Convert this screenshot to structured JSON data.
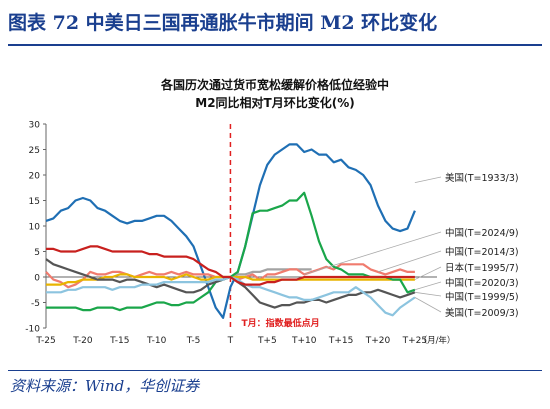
{
  "figure_title": "图表 72   中美日三国再通胀牛市期间 M2 环比变化",
  "source": "资料来源：Wind，华创证券",
  "chart_data": {
    "type": "line",
    "title_line1": "各国历次通过货币宽松缓解价格低位经验中",
    "title_line2": "M2同比相对T月环比变化(%)",
    "x_unit": "（月/年）",
    "x_ticks": [
      "T-25",
      "T-20",
      "T-15",
      "T-10",
      "T-5",
      "T",
      "T+5",
      "T+10",
      "T+15",
      "T+20",
      "T+25"
    ],
    "xlim": [
      -25,
      28
    ],
    "ylim": [
      -10,
      30
    ],
    "y_ticks": [
      -10,
      -5,
      0,
      5,
      10,
      15,
      20,
      25,
      30
    ],
    "annotation": "T月：指数最低点月",
    "series": [
      {
        "name": "美国(T=1933/3)",
        "color": "#1f6fb4",
        "x": [
          -25,
          -24,
          -23,
          -22,
          -21,
          -20,
          -19,
          -18,
          -17,
          -16,
          -15,
          -14,
          -13,
          -12,
          -11,
          -10,
          -9,
          -8,
          -7,
          -6,
          -5,
          -4,
          -3,
          -2,
          -1,
          0,
          1,
          2,
          3,
          4,
          5,
          6,
          7,
          8,
          9,
          10,
          11,
          12,
          13,
          14,
          15,
          16,
          17,
          18,
          19,
          20,
          21,
          22,
          23,
          24,
          25
        ],
        "y": [
          11,
          11.5,
          13,
          13.5,
          15,
          15.5,
          15,
          13.5,
          13,
          12,
          11,
          10.5,
          11,
          11,
          11.5,
          12,
          12,
          11,
          9.5,
          8,
          6,
          2,
          -2,
          -6,
          -8,
          -2,
          1,
          6,
          12,
          18,
          22,
          24,
          25,
          26,
          26,
          24.5,
          25,
          24,
          24,
          22.5,
          23,
          21.5,
          21,
          20,
          18,
          14,
          11,
          9.5,
          9,
          9.5,
          13
        ]
      },
      {
        "name": "中国(T=2024/9)",
        "color": "#a3a3a3",
        "x": [
          -1,
          0,
          1,
          2,
          3,
          4,
          5,
          6,
          7,
          8,
          9,
          10,
          11
        ],
        "y": [
          -0.5,
          0,
          0.5,
          0.5,
          1,
          1,
          1.5,
          1.5,
          1.5,
          1.5,
          1.5,
          1.5,
          1.5
        ]
      },
      {
        "name": "中国(T=2014/3)",
        "color": "#f07b6e",
        "x": [
          -25,
          -24,
          -23,
          -22,
          -21,
          -20,
          -19,
          -18,
          -17,
          -16,
          -15,
          -14,
          -13,
          -12,
          -11,
          -10,
          -9,
          -8,
          -7,
          -6,
          -5,
          -4,
          -3,
          -2,
          -1,
          0,
          1,
          2,
          3,
          4,
          5,
          6,
          7,
          8,
          9,
          10,
          11,
          12,
          13,
          14,
          15,
          16,
          17,
          18,
          19,
          20,
          21,
          22,
          23,
          24,
          25
        ],
        "y": [
          1,
          -0.5,
          -1,
          -2,
          -1.5,
          -0.5,
          1,
          0.5,
          0.5,
          1,
          1,
          0.5,
          0,
          0.5,
          1,
          0.5,
          0.5,
          1,
          0.5,
          1,
          0.5,
          0.5,
          0.5,
          0,
          0,
          0,
          -0.5,
          0,
          0.5,
          -0.5,
          0.5,
          0.5,
          1,
          1.5,
          1.5,
          0.5,
          1,
          1.5,
          2,
          1.5,
          2.5,
          2.5,
          2.5,
          2.5,
          1.5,
          1,
          0.5,
          1,
          1.5,
          1,
          1
        ]
      },
      {
        "name": "日本(T=1995/7)",
        "color": "#e8b400",
        "x": [
          -25,
          -24,
          -23,
          -22,
          -21,
          -20,
          -19,
          -18,
          -17,
          -16,
          -15,
          -14,
          -13,
          -12,
          -11,
          -10,
          -9,
          -8,
          -7,
          -6,
          -5,
          -4,
          -3,
          -2,
          -1,
          0,
          1,
          2,
          3,
          4,
          5,
          6,
          7,
          8,
          9,
          10,
          11,
          12,
          13,
          14,
          15,
          16,
          17,
          18,
          19,
          20,
          21,
          22,
          23,
          24,
          25
        ],
        "y": [
          -1.5,
          -1.5,
          -1.5,
          -1,
          -1,
          -0.5,
          -0.5,
          -0.5,
          0,
          0,
          0.5,
          0.5,
          0,
          0,
          0,
          0,
          0,
          -0.5,
          0,
          0.5,
          0,
          -0.5,
          -0.5,
          0,
          0,
          0,
          0,
          0,
          -0.5,
          -0.5,
          -0.5,
          -0.5,
          -0.5,
          -0.5,
          -0.5,
          -0.5,
          -0.5,
          -0.5,
          -0.5,
          -0.5,
          -0.5,
          -0.5,
          -0.5,
          -0.5,
          -0.5,
          -0.5,
          -0.5,
          -0.5,
          -0.5,
          -0.5,
          -0.5
        ]
      },
      {
        "name": "中国(T=2020/3)",
        "color": "#1aa64a",
        "x": [
          -25,
          -24,
          -23,
          -22,
          -21,
          -20,
          -19,
          -18,
          -17,
          -16,
          -15,
          -14,
          -13,
          -12,
          -11,
          -10,
          -9,
          -8,
          -7,
          -6,
          -5,
          -4,
          -3,
          -2,
          -1,
          0,
          1,
          2,
          3,
          4,
          5,
          6,
          7,
          8,
          9,
          10,
          11,
          12,
          13,
          14,
          15,
          16,
          17,
          18,
          19,
          20,
          21,
          22,
          23,
          24,
          25
        ],
        "y": [
          -6,
          -6,
          -6,
          -6,
          -6,
          -6.5,
          -6.5,
          -6,
          -6,
          -6,
          -6.5,
          -6,
          -6,
          -6,
          -5.5,
          -5,
          -5,
          -5.5,
          -5.5,
          -5,
          -5,
          -4,
          -3,
          -1,
          -0.5,
          0,
          1,
          6,
          12.5,
          13,
          13,
          13.5,
          14,
          15,
          15,
          16.5,
          12,
          7,
          3.5,
          2,
          1.5,
          0.5,
          0.5,
          0.5,
          0,
          0,
          0,
          -0.5,
          -0.5,
          -3,
          -2.5
        ]
      },
      {
        "name": "中国(T=1999/5)",
        "color": "#555555",
        "x": [
          -25,
          -24,
          -23,
          -22,
          -21,
          -20,
          -19,
          -18,
          -17,
          -16,
          -15,
          -14,
          -13,
          -12,
          -11,
          -10,
          -9,
          -8,
          -7,
          -6,
          -5,
          -4,
          -3,
          -2,
          -1,
          0,
          1,
          2,
          3,
          4,
          5,
          6,
          7,
          8,
          9,
          10,
          11,
          12,
          13,
          14,
          15,
          16,
          17,
          18,
          19,
          20,
          21,
          22,
          23,
          24,
          25
        ],
        "y": [
          3.5,
          2.5,
          2,
          1.5,
          1,
          0.5,
          0,
          -0.5,
          -0.5,
          -0.5,
          -1,
          -0.5,
          -0.5,
          -1,
          -1.5,
          -2,
          -1.5,
          -2,
          -2.5,
          -3,
          -3,
          -2.5,
          -1.5,
          -1,
          -0.5,
          0,
          -1,
          -2,
          -3.5,
          -5,
          -5.5,
          -6,
          -5.5,
          -5.5,
          -5,
          -5,
          -4.5,
          -4.5,
          -5,
          -4.5,
          -4,
          -3.5,
          -3.5,
          -3,
          -3,
          -2.5,
          -3,
          -3.5,
          -4,
          -3.5,
          -3
        ]
      },
      {
        "name": "美国(T=2009/3)",
        "color": "#8cc4df",
        "x": [
          -25,
          -24,
          -23,
          -22,
          -21,
          -20,
          -19,
          -18,
          -17,
          -16,
          -15,
          -14,
          -13,
          -12,
          -11,
          -10,
          -9,
          -8,
          -7,
          -6,
          -5,
          -4,
          -3,
          -2,
          -1,
          0,
          1,
          2,
          3,
          4,
          5,
          6,
          7,
          8,
          9,
          10,
          11,
          12,
          13,
          14,
          15,
          16,
          17,
          18,
          19,
          20,
          21,
          22,
          23,
          24,
          25
        ],
        "y": [
          -3,
          -3,
          -3,
          -2.5,
          -2.5,
          -2,
          -2,
          -2,
          -2,
          -2.5,
          -2,
          -2,
          -2,
          -1.5,
          -1.5,
          -1.5,
          -1,
          -1,
          -1,
          -1,
          -1,
          -1,
          -1,
          -0.5,
          -0.5,
          0,
          -0.5,
          -1.5,
          -2,
          -2,
          -2.5,
          -3,
          -3.5,
          -4,
          -4,
          -4.5,
          -4.5,
          -4,
          -3.5,
          -3,
          -3,
          -3,
          -2,
          -3,
          -4,
          -5.5,
          -7,
          -7.5,
          -6,
          -5,
          -4
        ]
      },
      {
        "name": "中国(T=2014/3)-b",
        "color": "#c8201e",
        "x": [
          -25,
          -24,
          -23,
          -22,
          -21,
          -20,
          -19,
          -18,
          -17,
          -16,
          -15,
          -14,
          -13,
          -12,
          -11,
          -10,
          -9,
          -8,
          -7,
          -6,
          -5,
          -4,
          -3,
          -2,
          -1,
          0,
          1,
          2,
          3,
          4,
          5,
          6,
          7,
          8,
          9,
          10,
          11,
          12,
          13,
          14,
          15,
          16,
          17,
          18,
          19,
          20,
          21,
          22,
          23,
          24,
          25
        ],
        "y": [
          5.5,
          5.5,
          5,
          5,
          5,
          5.5,
          6,
          6,
          5.5,
          5,
          5,
          5,
          5,
          5,
          4.5,
          4.5,
          4,
          4,
          4,
          4,
          3.5,
          2.5,
          1.5,
          1,
          0,
          0,
          -1,
          -1.5,
          -1.5,
          -1.5,
          -1,
          -1,
          -0.5,
          -0.5,
          -0.5,
          0,
          0,
          0,
          0,
          0,
          0,
          0,
          0,
          0,
          0,
          0,
          0,
          0,
          0,
          0,
          0
        ]
      }
    ],
    "legend": [
      {
        "label": "美国(T=1933/3)",
        "color": "#1f6fb4"
      },
      {
        "label": "中国(T=2024/9)",
        "color": "#a3a3a3"
      },
      {
        "label": "中国(T=2014/3)",
        "color": "#f07b6e"
      },
      {
        "label": "日本(T=1995/7)",
        "color": "#e8b400"
      },
      {
        "label": "中国(T=2020/3)",
        "color": "#1aa64a"
      },
      {
        "label": "中国(T=1999/5)",
        "color": "#555555"
      },
      {
        "label": "美国(T=2009/3)",
        "color": "#8cc4df"
      }
    ]
  }
}
